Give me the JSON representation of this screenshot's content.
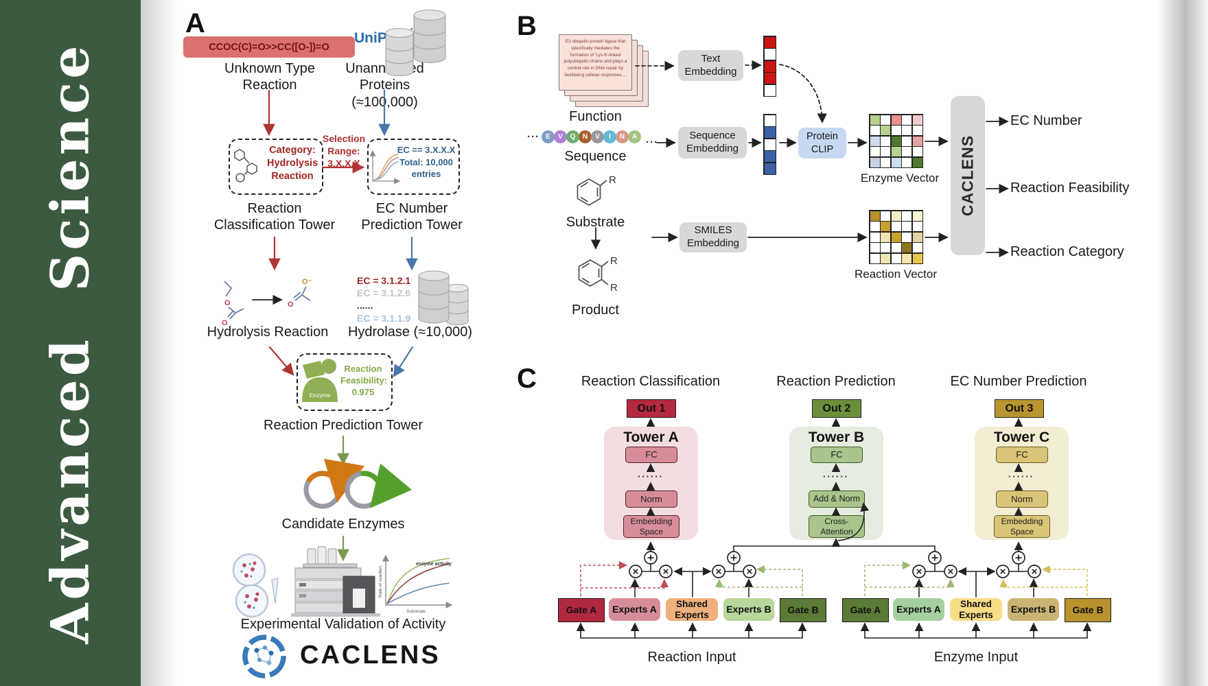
{
  "journal": {
    "name": "Advanced  Science",
    "bar_color": "#3c5a40"
  },
  "panelA": {
    "label": "A",
    "smiles": "CCOC(C)=O>>CC([O-])=O",
    "unknown_reaction_label": "Unknown Type Reaction",
    "uniprot_label": "UniProt",
    "unannotated_label": "Unannotated Proteins (≈100,000)",
    "category_box": "Category: Hydrolysis Reaction",
    "selection_label": "Selection Range: 3.X.X.X",
    "ec_filter_line1": "EC == 3.X.X.X",
    "ec_filter_line2": "Total: 10,000 entries",
    "classification_tower_label": "Reaction Classification Tower",
    "ec_tower_label": "EC Number Prediction Tower",
    "hydrolysis_label": "Hydrolysis Reaction",
    "ec_list": [
      {
        "text": "EC = 3.1.2.1",
        "color": "#9e1f1f"
      },
      {
        "text": "EC = 3.1.2.6",
        "color": "#c4c4c4"
      },
      {
        "text": "......",
        "color": "#333333"
      },
      {
        "text": "EC = 3.1.1.9",
        "color": "#a9c3df"
      }
    ],
    "hydrolase_label": "Hydrolase (≈10,000)",
    "enzyme_icon_label": "Enzyme",
    "feasibility_label": "Reaction Feasibility: 0.975",
    "prediction_tower_label": "Reaction Prediction Tower",
    "candidate_label": "Candidate Enzymes",
    "mini_chart": {
      "annotation": "enzyme activity",
      "ylabel": "Rate of reaction",
      "xlabel": "Substrate"
    },
    "validation_label": "Experimental Validation of Activity",
    "logo_text": "CACLENS"
  },
  "panelB": {
    "label": "B",
    "function_card_text": "E3 ubiquitin-protein ligase that specifically mediates the formation of 'Lys-6'-linked polyubiquitin chains and plays a central role in DNA repair by facilitating cellular responses....",
    "function_label": "Function",
    "ellipsis": "···",
    "sequence_letters": [
      {
        "char": "E",
        "color": "#7f9ec7"
      },
      {
        "char": "V",
        "color": "#b07fd6"
      },
      {
        "char": "Q",
        "color": "#6fae6f"
      },
      {
        "char": "N",
        "color": "#a9622f"
      },
      {
        "char": "V",
        "color": "#9898a0"
      },
      {
        "char": "I",
        "color": "#62b8d8"
      },
      {
        "char": "N",
        "color": "#d89888"
      },
      {
        "char": "A",
        "color": "#a6c27e"
      }
    ],
    "sequence_label": "Sequence",
    "substrate_label": "Substrate",
    "product_label": "Product",
    "r_label": "R",
    "text_embedding_label": "Text Embedding",
    "sequence_embedding_label": "Sequence Embedding",
    "smiles_embedding_label": "SMILES Embedding",
    "protein_clip_label": "Protein CLIP",
    "text_vector_cells": [
      "#cc1414",
      "#ffffff",
      "#cc1414",
      "#cc1414",
      "#ffffff"
    ],
    "sequence_vector_cells": [
      "#ffffff",
      "#3c61a5",
      "#ffffff",
      "#3c61a5",
      "#3c61a5"
    ],
    "enzyme_vector_label": "Enzyme Vector",
    "enzyme_vector_cells": [
      "#b7d28f",
      "#ffffff",
      "#e98f8f",
      "#ffffff",
      "#f4cbcb",
      "#ffffff",
      "#b7d28f",
      "#ffffff",
      "#ffffff",
      "#ffffff",
      "#cdddf0",
      "#ffffff",
      "#4f7a2f",
      "#ffffff",
      "#e9a3a3",
      "#ffffff",
      "#ffffff",
      "#b7d28f",
      "#ffffff",
      "#ffffff",
      "#c9d2e4",
      "#ffffff",
      "#cdddf0",
      "#ffffff",
      "#4f7a2f"
    ],
    "reaction_vector_label": "Reaction Vector",
    "reaction_vector_cells": [
      "#b8922e",
      "#ffffff",
      "#f5ecc8",
      "#ffffff",
      "#f8f1d4",
      "#ffffff",
      "#c8a22f",
      "#ffffff",
      "#ffffff",
      "#ffffff",
      "#ffffff",
      "#f0e4b2",
      "#c8a22f",
      "#ffffff",
      "#e7d6a2",
      "#ffffff",
      "#ffffff",
      "#ffffff",
      "#8a761f",
      "#ffffff",
      "#ffffff",
      "#f0e4b2",
      "#ffffff",
      "#f4e6ae",
      "#e7c64e"
    ],
    "caclens_label": "CACLENS",
    "outputs": [
      "EC Number",
      "Reaction Feasibility",
      "Reaction Category"
    ]
  },
  "panelC": {
    "label": "C",
    "headers": [
      "Reaction Classification",
      "Reaction Prediction",
      "EC Number Prediction"
    ],
    "outs": [
      "Out 1",
      "Out 2",
      "Out 3"
    ],
    "towers": [
      {
        "name": "Tower A",
        "dots": "······",
        "blocks": [
          "FC",
          "Norm",
          "Embedding Space"
        ]
      },
      {
        "name": "Tower B",
        "dots": "······",
        "blocks": [
          "FC",
          "Add & Norm",
          "Cross-Attention"
        ]
      },
      {
        "name": "Tower C",
        "dots": "······",
        "blocks": [
          "FC",
          "Norm",
          "Embedding Space"
        ]
      }
    ],
    "moe_left": [
      "Gate A",
      "Experts A",
      "Shared Experts",
      "Experts B",
      "Gate B"
    ],
    "moe_right": [
      "Gate A",
      "Experts A",
      "Shared Experts",
      "Experts B",
      "Gate B"
    ],
    "input_labels": [
      "Reaction Input",
      "Enzyme Input"
    ]
  }
}
